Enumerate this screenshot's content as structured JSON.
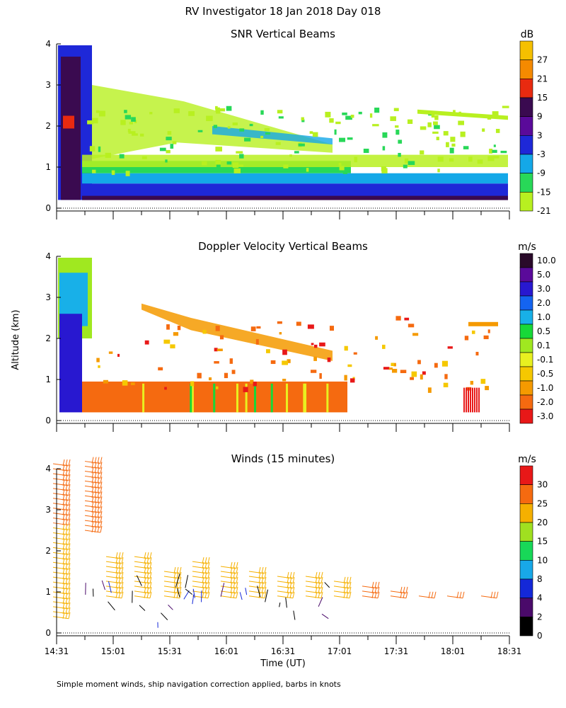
{
  "figure": {
    "title": "RV Investigator  18 Jan 2018 Day 018",
    "ylabel": "Altitude (km)",
    "xlabel": "Time (UT)",
    "footnote": "Simple moment winds, ship navigation correction applied, barbs in knots"
  },
  "chart_data": [
    {
      "type": "heatmap",
      "title": "SNR Vertical Beams",
      "ylabel": "Altitude (km)",
      "ylim": [
        0,
        4
      ],
      "yticks": [
        "0",
        "1",
        "2",
        "3",
        "4"
      ],
      "colorbar": {
        "unit": "dB",
        "labels": [
          "27",
          "21",
          "15",
          "9",
          "3",
          "-3",
          "-9",
          "-15",
          "-21"
        ],
        "colors": [
          "#f5c000",
          "#f58a00",
          "#e82a10",
          "#3a0a50",
          "#5a0a9a",
          "#1e28d8",
          "#14a8e8",
          "#28d858",
          "#b8f020"
        ]
      }
    },
    {
      "type": "heatmap",
      "title": "Doppler Velocity Vertical Beams",
      "ylabel": "Altitude (km)",
      "ylim": [
        0,
        4
      ],
      "yticks": [
        "0",
        "1",
        "2",
        "3",
        "4"
      ],
      "colorbar": {
        "unit": "m/s",
        "labels": [
          "10.0",
          "5.0",
          "3.0",
          "2.0",
          "1.0",
          "0.5",
          "0.1",
          "-0.1",
          "-0.5",
          "-1.0",
          "-2.0",
          "-3.0"
        ],
        "colors": [
          "#2a0a2a",
          "#5a0a9a",
          "#2818d0",
          "#1464f0",
          "#18b0e8",
          "#18d838",
          "#a0e820",
          "#e8f020",
          "#f5c800",
          "#f59a00",
          "#f56a10",
          "#e81818"
        ]
      }
    },
    {
      "type": "scatter",
      "title": "Winds (15 minutes)",
      "ylabel": "Altitude (km)",
      "xlabel": "Time (UT)",
      "ylim": [
        0,
        4
      ],
      "yticks": [
        "0",
        "1",
        "2",
        "3",
        "4"
      ],
      "xticks": [
        "14:31",
        "15:01",
        "15:31",
        "16:01",
        "16:31",
        "17:01",
        "17:31",
        "18:01",
        "18:31"
      ],
      "colorbar": {
        "unit": "m/s",
        "labels": [
          "30",
          "25",
          "20",
          "15",
          "10",
          "8",
          "4",
          "2",
          "0"
        ],
        "colors": [
          "#e81818",
          "#f56a10",
          "#f5b000",
          "#a0e020",
          "#18d858",
          "#18a8e8",
          "#1428d8",
          "#4a0a6a",
          "#000000"
        ]
      }
    }
  ]
}
